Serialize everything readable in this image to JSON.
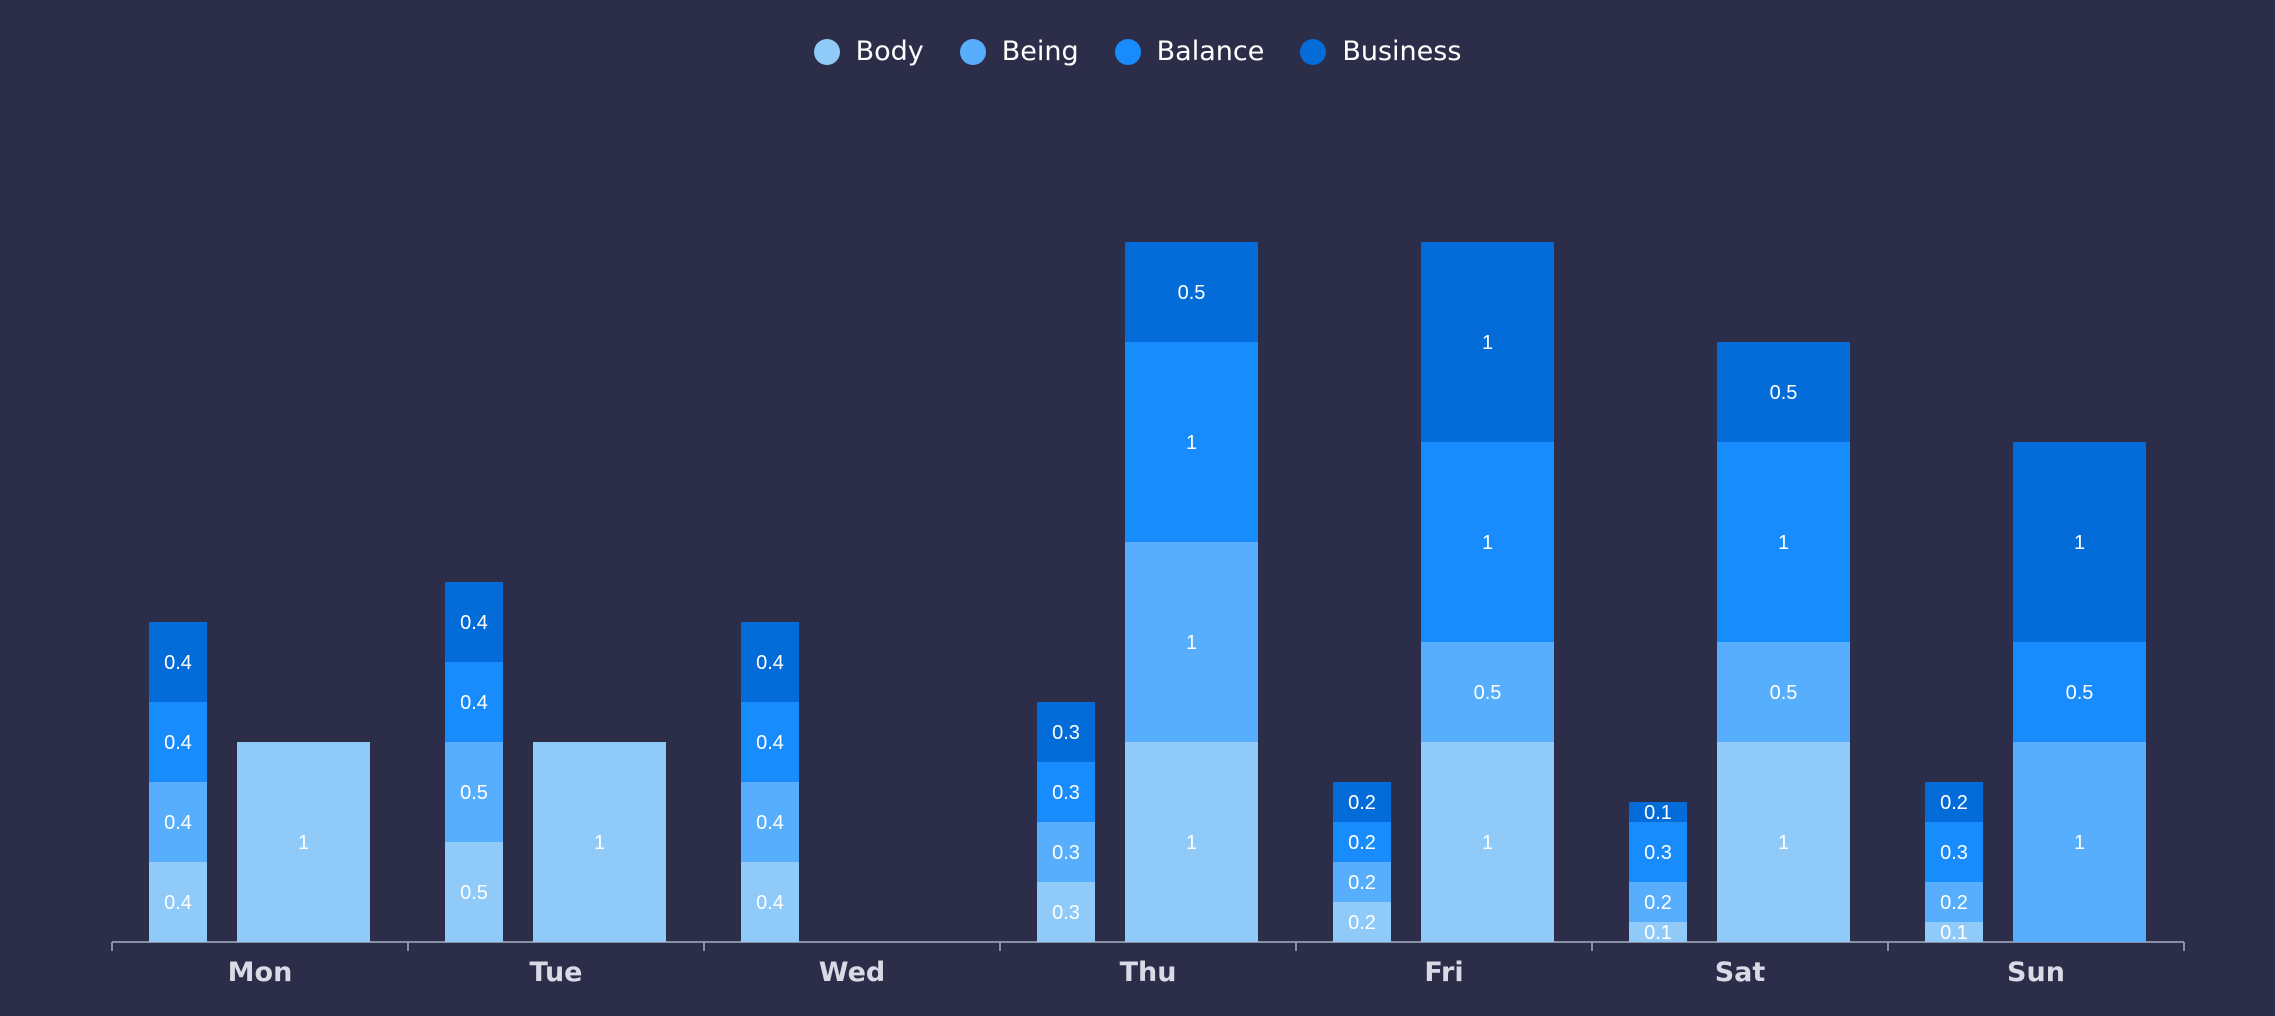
{
  "legend": [
    {
      "name": "Body",
      "color": "#90caf9"
    },
    {
      "name": "Being",
      "color": "#56aefc"
    },
    {
      "name": "Balance",
      "color": "#188cfd"
    },
    {
      "name": "Business",
      "color": "#036cd8"
    }
  ],
  "chart_data": {
    "type": "bar",
    "stacked": true,
    "grouped": true,
    "categories": [
      "Mon",
      "Tue",
      "Wed",
      "Thu",
      "Fri",
      "Sat",
      "Sun"
    ],
    "series": [
      {
        "name": "Body",
        "color": "#90caf9"
      },
      {
        "name": "Being",
        "color": "#56aefc"
      },
      {
        "name": "Balance",
        "color": "#188cfd"
      },
      {
        "name": "Business",
        "color": "#036cd8"
      }
    ],
    "groups": [
      {
        "stacks": [
          {
            "Body": 0.4,
            "Being": 0.4,
            "Balance": 0.4,
            "Business": 0.4
          },
          {
            "Body": 1
          }
        ]
      },
      {
        "stacks": [
          {
            "Body": 0.5,
            "Being": 0.5,
            "Balance": 0.4,
            "Business": 0.4
          },
          {
            "Body": 1
          }
        ]
      },
      {
        "stacks": [
          {
            "Body": 0.4,
            "Being": 0.4,
            "Balance": 0.4,
            "Business": 0.4
          },
          {}
        ]
      },
      {
        "stacks": [
          {
            "Body": 0.3,
            "Being": 0.3,
            "Balance": 0.3,
            "Business": 0.3
          },
          {
            "Body": 1,
            "Being": 1,
            "Balance": 1,
            "Business": 0.5
          }
        ]
      },
      {
        "stacks": [
          {
            "Body": 0.2,
            "Being": 0.2,
            "Balance": 0.2,
            "Business": 0.2
          },
          {
            "Body": 1,
            "Being": 0.5,
            "Balance": 1,
            "Business": 1
          }
        ]
      },
      {
        "stacks": [
          {
            "Body": 0.1,
            "Being": 0.2,
            "Balance": 0.3,
            "Business": 0.1
          },
          {
            "Body": 1,
            "Being": 0.5,
            "Balance": 1,
            "Business": 0.5
          }
        ]
      },
      {
        "stacks": [
          {
            "Body": 0.1,
            "Being": 0.2,
            "Balance": 0.3,
            "Business": 0.2
          },
          {
            "Being": 1,
            "Balance": 0.5,
            "Business": 1
          }
        ]
      }
    ],
    "ylim": [
      0,
      3.5
    ],
    "grid": false,
    "legend_position": "top-center"
  }
}
